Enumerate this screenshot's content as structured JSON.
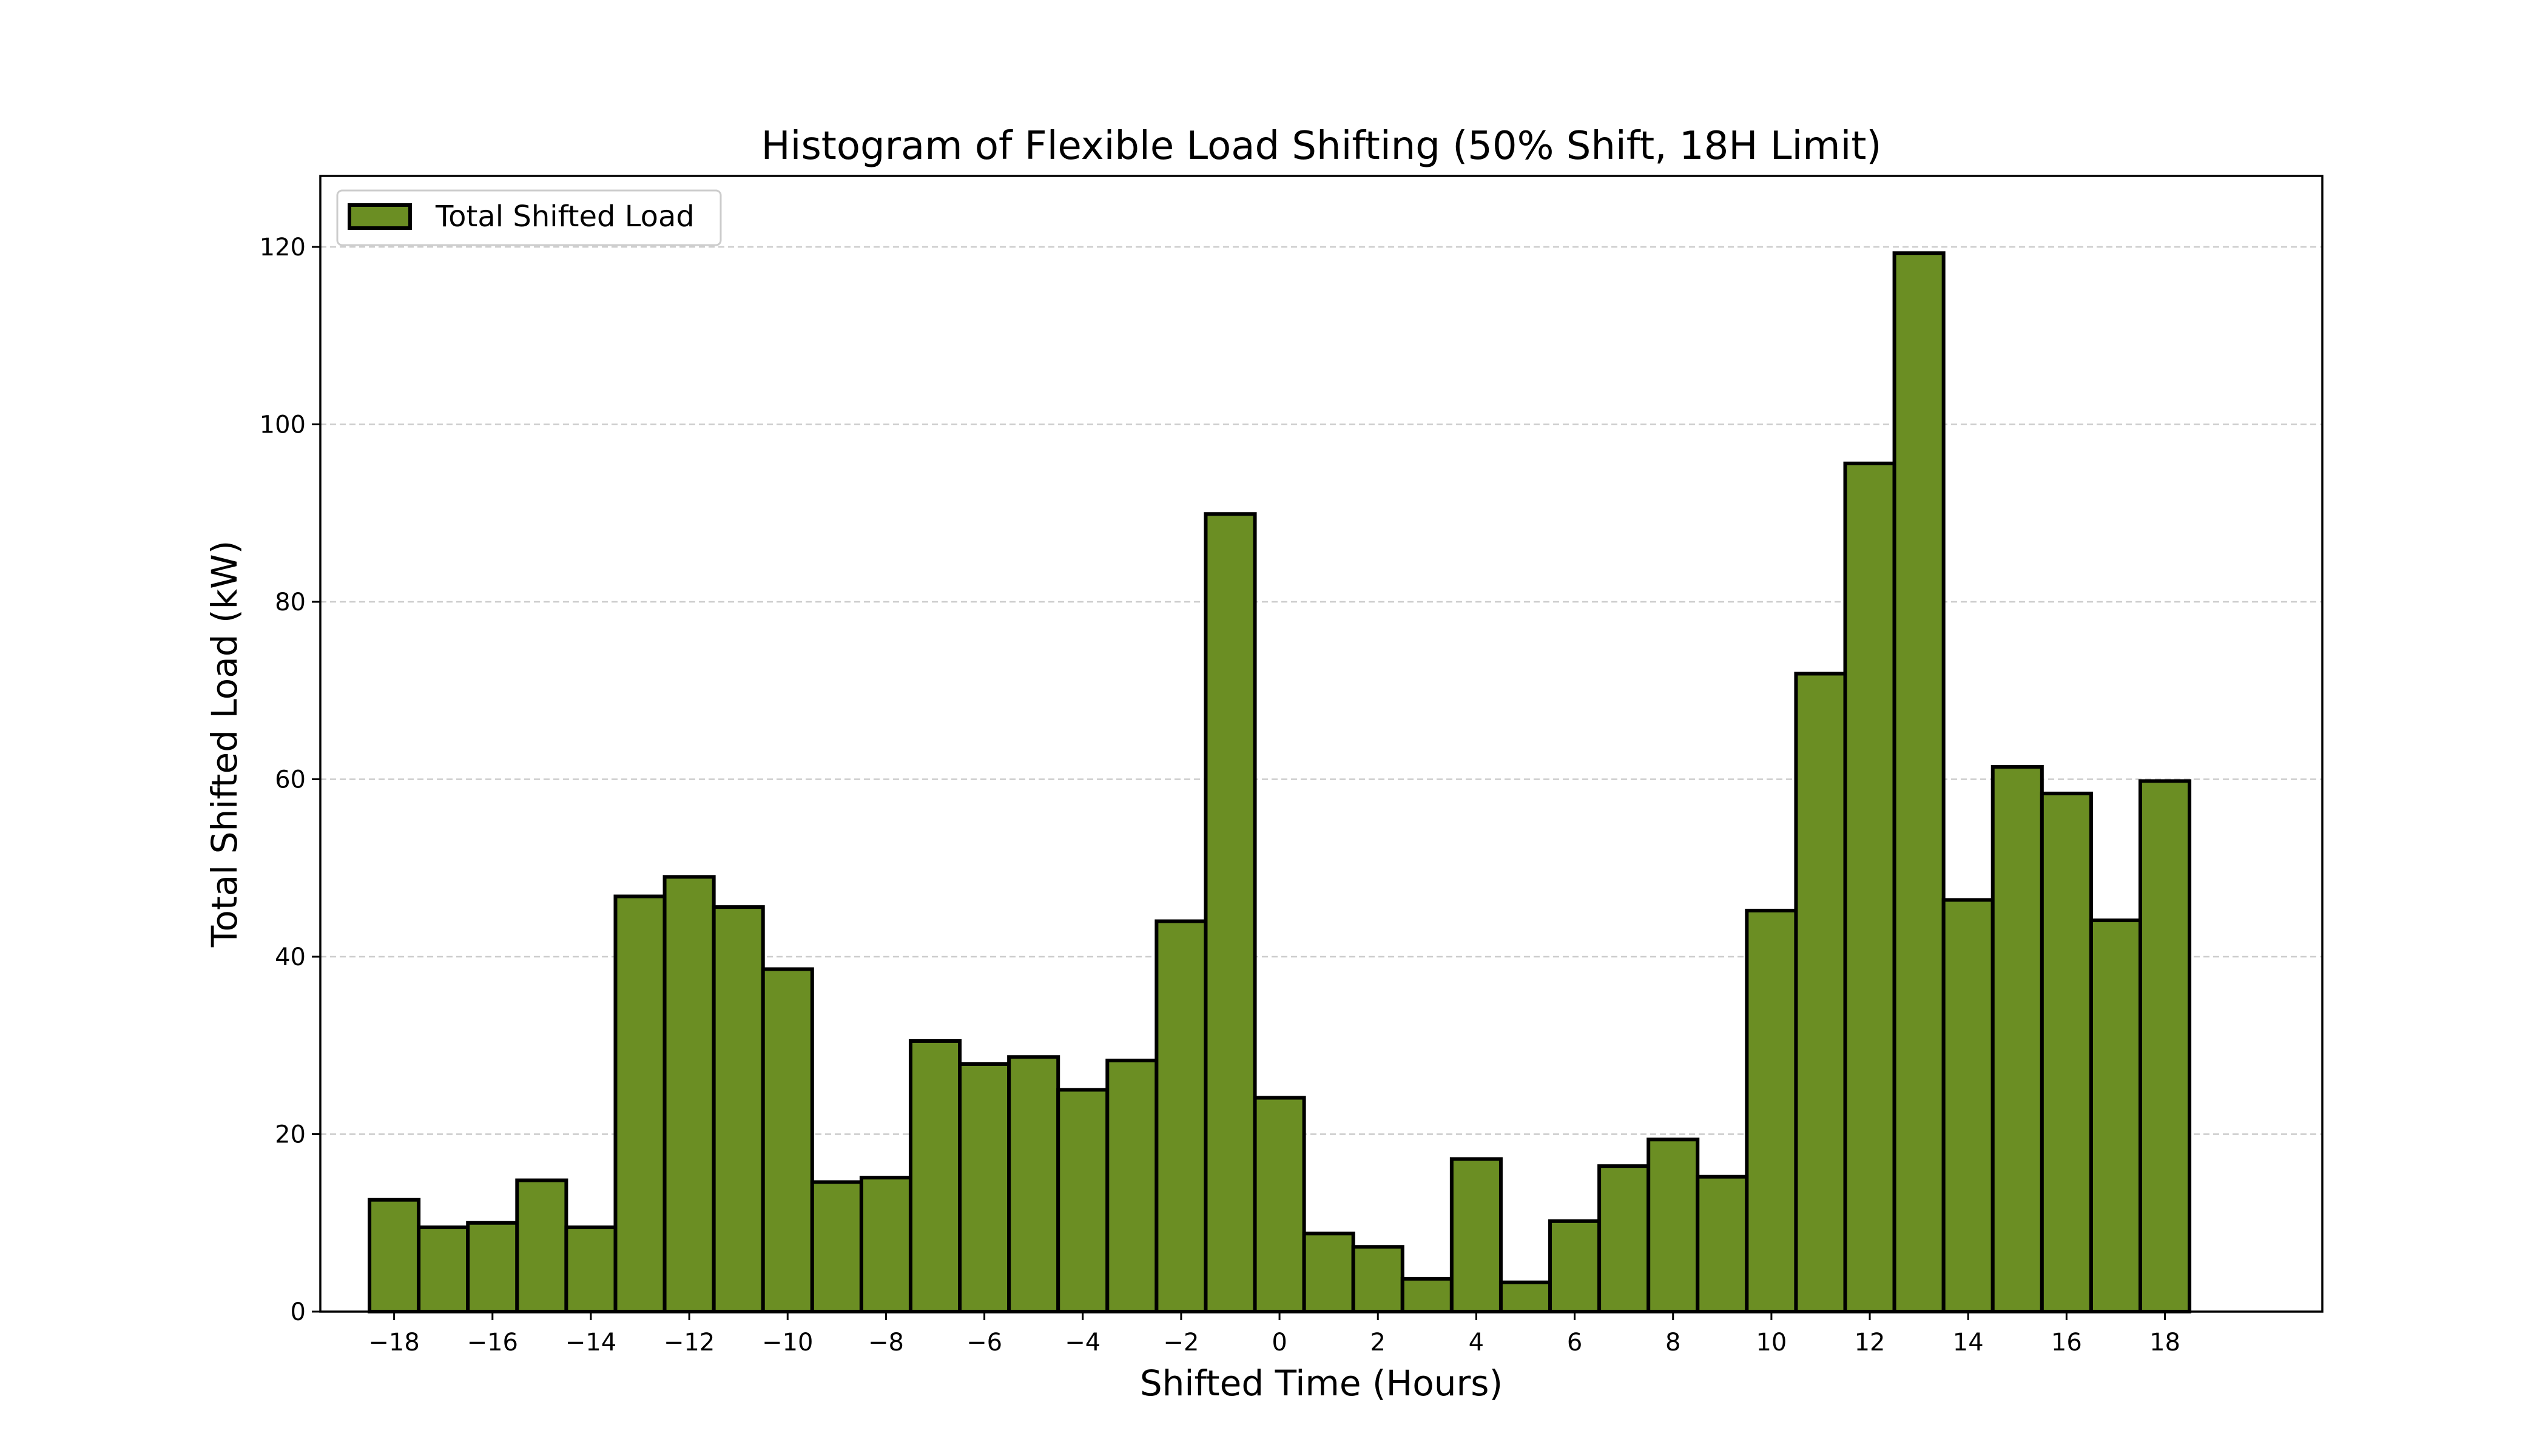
{
  "chart_data": {
    "type": "bar",
    "title": "Histogram of Flexible Load Shifting (50% Shift, 18H Limit)",
    "xlabel": "Shifted Time (Hours)",
    "ylabel": "Total Shifted Load (kW)",
    "xlim": [
      -19.5,
      21.2
    ],
    "ylim": [
      0,
      128
    ],
    "xticks": [
      -18,
      -16,
      -14,
      -12,
      -10,
      -8,
      -6,
      -4,
      -2,
      0,
      2,
      4,
      6,
      8,
      10,
      12,
      14,
      16,
      18
    ],
    "xtick_labels": [
      "−18",
      "−16",
      "−14",
      "−12",
      "−10",
      "−8",
      "−6",
      "−4",
      "−2",
      "0",
      "2",
      "4",
      "6",
      "8",
      "10",
      "12",
      "14",
      "16",
      "18"
    ],
    "yticks": [
      0,
      20,
      40,
      60,
      80,
      100,
      120
    ],
    "ytick_labels": [
      "0",
      "20",
      "40",
      "60",
      "80",
      "100",
      "120"
    ],
    "grid": "y-dashed",
    "legend_position": "top-left",
    "bar_color": "#6b8e23",
    "edge_color": "#000000",
    "series": [
      {
        "name": "Total Shifted Load",
        "x": [
          -18,
          -17,
          -16,
          -15,
          -14,
          -13,
          -12,
          -11,
          -10,
          -9,
          -8,
          -7,
          -6,
          -5,
          -4,
          -3,
          -2,
          -1,
          0,
          1,
          2,
          3,
          4,
          5,
          6,
          7,
          8,
          9,
          10,
          11,
          12,
          13,
          14,
          15,
          16,
          17,
          18
        ],
        "values": [
          12.6,
          9.5,
          10.0,
          14.8,
          9.5,
          46.8,
          49.0,
          45.6,
          38.6,
          14.6,
          15.1,
          30.5,
          27.9,
          28.7,
          25.0,
          28.3,
          44.0,
          89.9,
          24.1,
          8.8,
          7.3,
          3.7,
          17.2,
          3.3,
          10.2,
          16.4,
          19.4,
          15.2,
          45.2,
          71.9,
          95.6,
          119.3,
          46.4,
          61.4,
          58.4,
          44.1,
          59.8
        ]
      }
    ]
  }
}
